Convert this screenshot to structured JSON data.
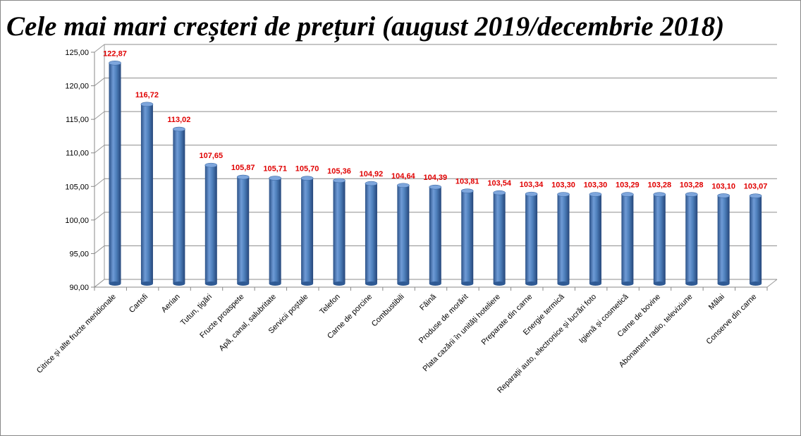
{
  "chart_data": {
    "type": "bar",
    "title": "Cele mai mari creșteri de prețuri (august 2019/decembrie 2018)",
    "xlabel": "",
    "ylabel": "",
    "ylim": [
      90,
      125
    ],
    "yticks": [
      "90,00",
      "95,00",
      "100,00",
      "105,00",
      "110,00",
      "115,00",
      "120,00",
      "125,00"
    ],
    "grid": true,
    "categories": [
      "Citrice și alte fructe meridionale",
      "Cartofi",
      "Aerian",
      "Tutun, țigări",
      "Fructe proaspete",
      "Apă, canal, salubritate",
      "Servicii poștale",
      "Telefon",
      "Carne de porcine",
      "Combustibili",
      "Făină",
      "Produse de morărit",
      "Plata cazării în unități hoteliere",
      "Preparate din carne",
      "Energie termică",
      "Reparații auto, electronice și lucrări foto",
      "Igienă și cosmetică",
      "Carne de bovine",
      "Abonament radio, televiziune",
      "Mălai",
      "Conserve din carne"
    ],
    "values": [
      122.87,
      116.72,
      113.02,
      107.65,
      105.87,
      105.71,
      105.7,
      105.36,
      104.92,
      104.64,
      104.39,
      103.81,
      103.54,
      103.34,
      103.3,
      103.3,
      103.29,
      103.28,
      103.28,
      103.1,
      103.07
    ],
    "labels": [
      "122,87",
      "116,72",
      "113,02",
      "107,65",
      "105,87",
      "105,71",
      "105,70",
      "105,36",
      "104,92",
      "104,64",
      "104,39",
      "103,81",
      "103,54",
      "103,34",
      "103,30",
      "103,30",
      "103,29",
      "103,28",
      "103,28",
      "103,10",
      "103,07"
    ],
    "bar_color": "#4f81bd",
    "label_color": "#e00000"
  }
}
